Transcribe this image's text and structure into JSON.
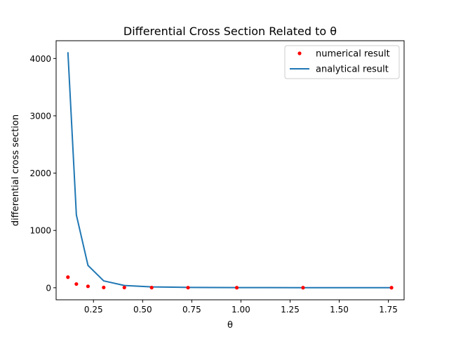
{
  "chart_data": {
    "type": "line",
    "title": "Differential Cross Section Related to θ",
    "xlabel": "θ",
    "ylabel": "differential cross section",
    "xlim": [
      0.06,
      1.83
    ],
    "ylim": [
      -210,
      4310
    ],
    "x_ticks": [
      0.25,
      0.5,
      0.75,
      1.0,
      1.25,
      1.5,
      1.75
    ],
    "x_tick_labels": [
      "0.25",
      "0.50",
      "0.75",
      "1.00",
      "1.25",
      "1.50",
      "1.75"
    ],
    "y_ticks": [
      0,
      1000,
      2000,
      3000,
      4000
    ],
    "y_tick_labels": [
      "0",
      "1000",
      "2000",
      "3000",
      "4000"
    ],
    "grid": false,
    "legend_position": "top-right",
    "series": [
      {
        "name": "numerical result",
        "kind": "scatter",
        "color": "#ff0000",
        "x": [
          0.12,
          0.163,
          0.222,
          0.302,
          0.407,
          0.546,
          0.731,
          0.979,
          1.316,
          1.766
        ],
        "y": [
          185,
          65,
          25,
          5,
          4,
          3,
          2,
          1,
          1,
          1
        ]
      },
      {
        "name": "analytical result",
        "kind": "line",
        "color": "#1f77b4",
        "x": [
          0.12,
          0.163,
          0.222,
          0.302,
          0.407,
          0.546,
          0.731,
          0.979,
          1.316,
          1.766
        ],
        "y": [
          4110,
          1270,
          390,
          120,
          40,
          15,
          6,
          3,
          2,
          1
        ]
      }
    ]
  }
}
